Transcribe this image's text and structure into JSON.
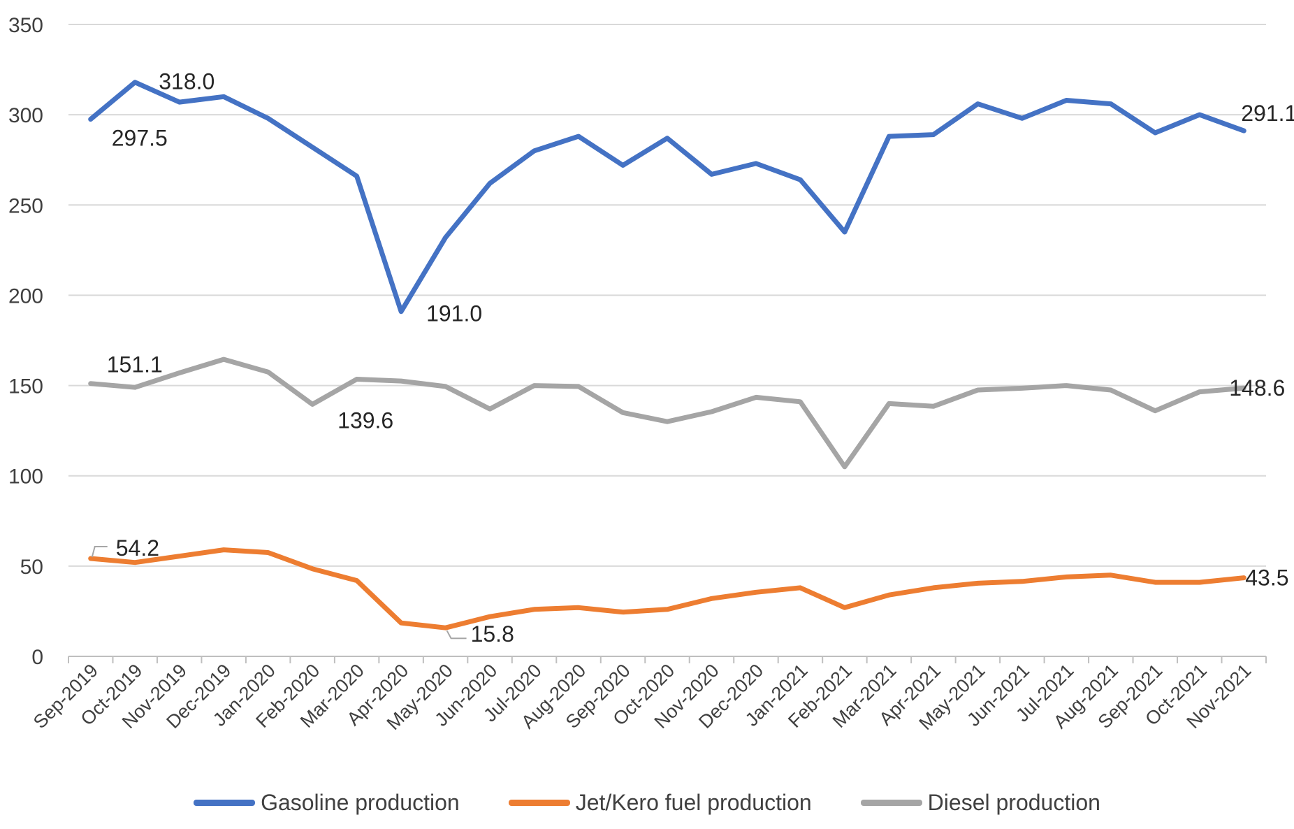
{
  "chart_data": {
    "type": "line",
    "title": "",
    "xlabel": "",
    "ylabel": "",
    "ylim": [
      0,
      350
    ],
    "yticks": [
      0,
      50,
      100,
      150,
      200,
      250,
      300,
      350
    ],
    "grid": true,
    "legend_position": "bottom",
    "categories": [
      "Sep-2019",
      "Oct-2019",
      "Nov-2019",
      "Dec-2019",
      "Jan-2020",
      "Feb-2020",
      "Mar-2020",
      "Apr-2020",
      "May-2020",
      "Jun-2020",
      "Jul-2020",
      "Aug-2020",
      "Sep-2020",
      "Oct-2020",
      "Nov-2020",
      "Dec-2020",
      "Jan-2021",
      "Feb-2021",
      "Mar-2021",
      "Apr-2021",
      "May-2021",
      "Jun-2021",
      "Jul-2021",
      "Aug-2021",
      "Sep-2021",
      "Oct-2021",
      "Nov-2021"
    ],
    "series": [
      {
        "name": "Gasoline production",
        "color": "#4472C4",
        "values": [
          297.5,
          318.0,
          307,
          310,
          298,
          282,
          266,
          191.0,
          232,
          262,
          280,
          288,
          272,
          287,
          267,
          273,
          264,
          235,
          288,
          289,
          306,
          298,
          308,
          306,
          290,
          300,
          291.1
        ],
        "labels": [
          {
            "index": 0,
            "text": "297.5"
          },
          {
            "index": 1,
            "text": "318.0"
          },
          {
            "index": 7,
            "text": "191.0"
          },
          {
            "index": 26,
            "text": "291.1"
          }
        ]
      },
      {
        "name": "Jet/Kero fuel production",
        "color": "#ED7D31",
        "values": [
          54.2,
          52,
          55.5,
          59,
          57.5,
          48.5,
          42,
          18.5,
          15.8,
          22,
          26,
          27,
          24.5,
          26,
          32,
          35.5,
          38,
          27,
          34,
          38,
          40.5,
          41.5,
          44,
          45,
          41,
          41,
          43.5
        ],
        "labels": [
          {
            "index": 0,
            "text": "54.2"
          },
          {
            "index": 8,
            "text": "15.8"
          },
          {
            "index": 26,
            "text": "43.5"
          }
        ]
      },
      {
        "name": "Diesel production",
        "color": "#A5A5A5",
        "values": [
          151.1,
          149,
          157,
          164.5,
          157.5,
          139.6,
          153.5,
          152.5,
          149.5,
          137,
          150,
          149.5,
          135,
          130,
          135.5,
          143.5,
          141,
          105,
          140,
          138.5,
          147.5,
          148.5,
          150,
          147.5,
          136,
          146.5,
          148.6
        ],
        "labels": [
          {
            "index": 0,
            "text": "151.1"
          },
          {
            "index": 5,
            "text": "139.6"
          },
          {
            "index": 26,
            "text": "148.6"
          }
        ]
      }
    ]
  }
}
